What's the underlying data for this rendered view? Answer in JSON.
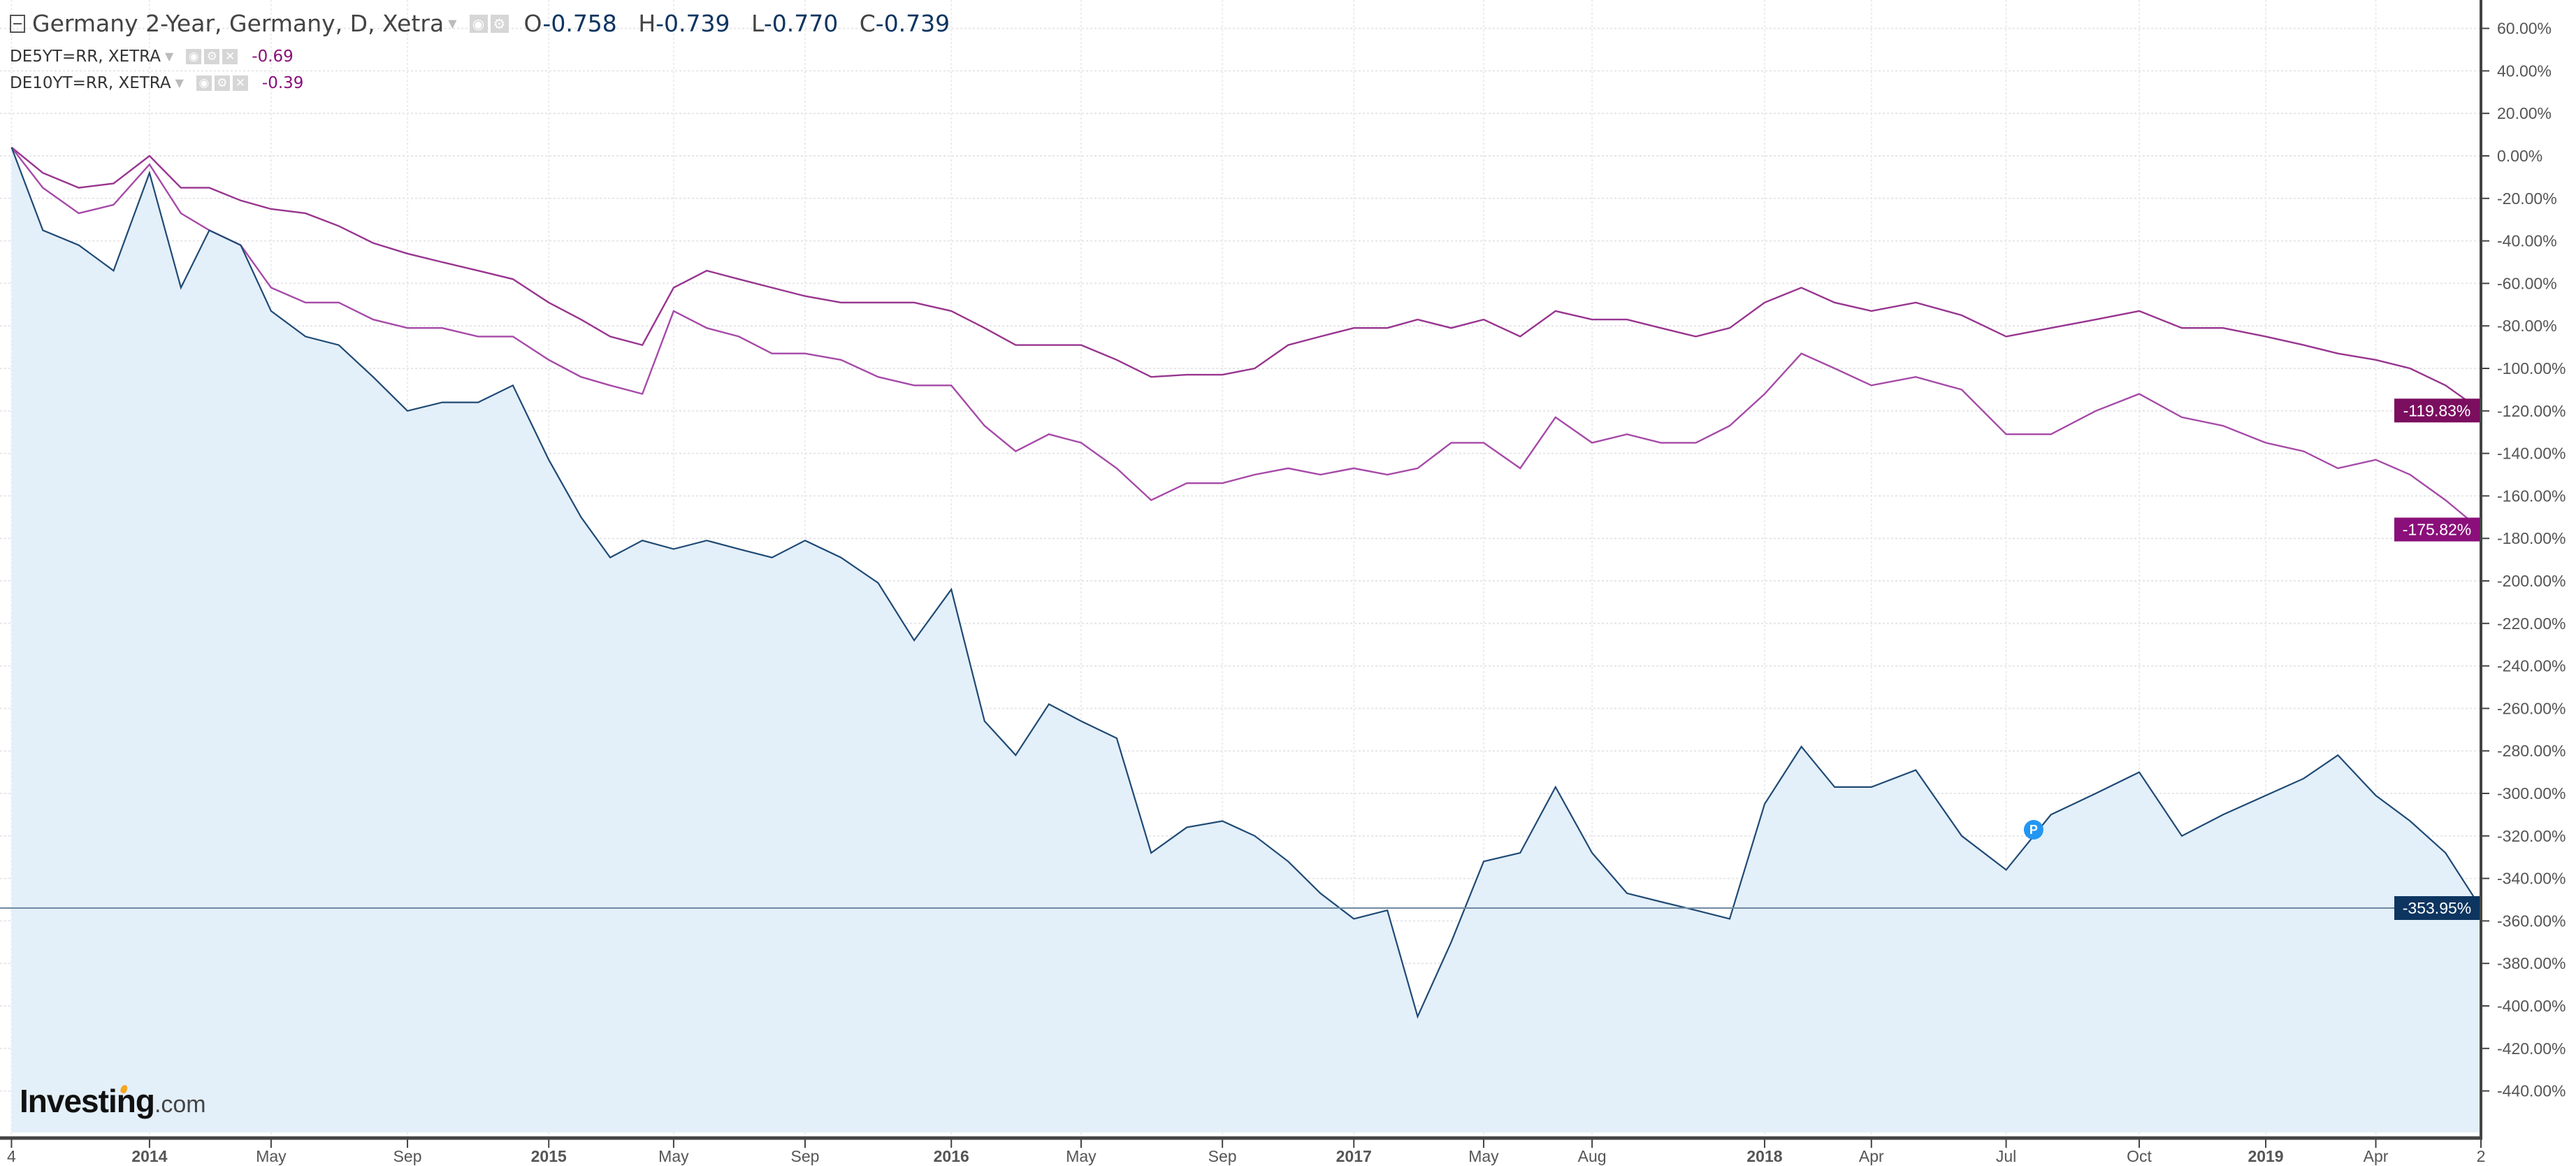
{
  "header": {
    "title": "Germany 2-Year, Germany, D, Xetra",
    "ohlc": [
      {
        "label": "O",
        "value": "-0.758"
      },
      {
        "label": "H",
        "value": "-0.739"
      },
      {
        "label": "L",
        "value": "-0.770"
      },
      {
        "label": "C",
        "value": "-0.739"
      }
    ]
  },
  "comparisons": [
    {
      "symbol": "DE5YT=RR, XETRA",
      "value": "-0.69"
    },
    {
      "symbol": "DE10YT=RR, XETRA",
      "value": "-0.39"
    }
  ],
  "logo": {
    "main": "Investing",
    "suffix": ".com"
  },
  "marker": {
    "label": "P",
    "date": "2018-07-20",
    "color": "#2196f3"
  },
  "colors": {
    "main_line": "#1f4a75",
    "main_fill": "#e3eff9",
    "de5y": "#a64aa8",
    "de10y": "#98358f",
    "badge_main": "#0d3560",
    "badge_de5y": "#8a0f7a",
    "badge_de10y": "#7b0e5f"
  },
  "chart_data": {
    "type": "line",
    "title": "",
    "xlabel": "",
    "ylabel": "",
    "ylim": [
      -450,
      65
    ],
    "grid": true,
    "y_ticks": [
      "60.00%",
      "40.00%",
      "20.00%",
      "0.00%",
      "-20.00%",
      "-40.00%",
      "-60.00%",
      "-80.00%",
      "-100.00%",
      "-120.00%",
      "-140.00%",
      "-160.00%",
      "-180.00%",
      "-200.00%",
      "-220.00%",
      "-240.00%",
      "-260.00%",
      "-280.00%",
      "-300.00%",
      "-320.00%",
      "-340.00%",
      "-360.00%",
      "-380.00%",
      "-400.00%",
      "-420.00%",
      "-440.00%"
    ],
    "y_tick_values": [
      60,
      40,
      20,
      0,
      -20,
      -40,
      -60,
      -80,
      -100,
      -120,
      -140,
      -160,
      -180,
      -200,
      -220,
      -240,
      -260,
      -280,
      -300,
      -320,
      -340,
      -360,
      -380,
      -400,
      -420,
      -440
    ],
    "x_ticks": [
      {
        "label": "4",
        "date": "2013-09-04",
        "bold": false
      },
      {
        "label": "2014",
        "date": "2014-01-01",
        "bold": true
      },
      {
        "label": "May",
        "date": "2014-05-01",
        "bold": false
      },
      {
        "label": "Sep",
        "date": "2014-09-01",
        "bold": false
      },
      {
        "label": "2015",
        "date": "2015-01-01",
        "bold": true
      },
      {
        "label": "May",
        "date": "2015-05-01",
        "bold": false
      },
      {
        "label": "Sep",
        "date": "2015-09-01",
        "bold": false
      },
      {
        "label": "2016",
        "date": "2016-01-01",
        "bold": true
      },
      {
        "label": "May",
        "date": "2016-05-01",
        "bold": false
      },
      {
        "label": "Sep",
        "date": "2016-09-01",
        "bold": false
      },
      {
        "label": "2017",
        "date": "2017-01-01",
        "bold": true
      },
      {
        "label": "May",
        "date": "2017-05-01",
        "bold": false
      },
      {
        "label": "Aug",
        "date": "2017-08-01",
        "bold": false
      },
      {
        "label": "2018",
        "date": "2018-01-01",
        "bold": true
      },
      {
        "label": "Apr",
        "date": "2018-04-01",
        "bold": false
      },
      {
        "label": "Jul",
        "date": "2018-07-01",
        "bold": false
      },
      {
        "label": "Oct",
        "date": "2018-10-01",
        "bold": false
      },
      {
        "label": "2019",
        "date": "2019-01-01",
        "bold": true
      },
      {
        "label": "Apr",
        "date": "2019-04-01",
        "bold": false
      },
      {
        "label": "2",
        "date": "2019-07-02",
        "bold": false
      }
    ],
    "x": [
      "2013-09-04",
      "2013-10-01",
      "2013-11-01",
      "2013-12-01",
      "2014-01-01",
      "2014-02-01",
      "2014-03-01",
      "2014-04-01",
      "2014-05-01",
      "2014-06-01",
      "2014-07-01",
      "2014-08-01",
      "2014-09-01",
      "2014-10-01",
      "2014-11-01",
      "2014-12-01",
      "2015-01-01",
      "2015-02-01",
      "2015-03-01",
      "2015-04-01",
      "2015-05-01",
      "2015-06-01",
      "2015-07-01",
      "2015-08-01",
      "2015-09-01",
      "2015-10-01",
      "2015-11-01",
      "2015-12-01",
      "2016-01-01",
      "2016-02-01",
      "2016-03-01",
      "2016-04-01",
      "2016-05-01",
      "2016-06-01",
      "2016-07-01",
      "2016-08-01",
      "2016-09-01",
      "2016-10-01",
      "2016-11-01",
      "2016-12-01",
      "2017-01-01",
      "2017-02-01",
      "2017-03-01",
      "2017-04-01",
      "2017-05-01",
      "2017-06-01",
      "2017-07-01",
      "2017-08-01",
      "2017-09-01",
      "2017-10-01",
      "2017-11-01",
      "2017-12-01",
      "2018-01-01",
      "2018-02-01",
      "2018-03-01",
      "2018-04-01",
      "2018-05-01",
      "2018-06-01",
      "2018-07-01",
      "2018-08-01",
      "2018-09-01",
      "2018-10-01",
      "2018-11-01",
      "2018-12-01",
      "2019-01-01",
      "2019-02-01",
      "2019-03-01",
      "2019-04-01",
      "2019-05-01",
      "2019-06-01",
      "2019-07-02"
    ],
    "series": [
      {
        "name": "Germany 2-Year",
        "last_label": "-353.95%",
        "values": [
          4,
          -35,
          -42,
          -54,
          -8,
          -62,
          -35,
          -42,
          -73,
          -85,
          -89,
          -104,
          -120,
          -116,
          -116,
          -108,
          -143,
          -170,
          -189,
          -181,
          -185,
          -181,
          -185,
          -189,
          -181,
          -189,
          -201,
          -228,
          -204,
          -266,
          -282,
          -258,
          -266,
          -274,
          -328,
          -316,
          -313,
          -320,
          -332,
          -347,
          -359,
          -355,
          -405,
          -370,
          -332,
          -328,
          -297,
          -328,
          -347,
          -351,
          -355,
          -359,
          -305,
          -278,
          -297,
          -297,
          -289,
          -320,
          -336,
          -310,
          -300,
          -290,
          -320,
          -310,
          -301,
          -293,
          -282,
          -301,
          -313,
          -328,
          -353.95
        ]
      },
      {
        "name": "DE5YT=RR, XETRA",
        "last_label": "-175.82%",
        "values": [
          4,
          -15,
          -27,
          -23,
          -4,
          -27,
          -35,
          -42,
          -62,
          -69,
          -69,
          -77,
          -81,
          -81,
          -85,
          -85,
          -96,
          -104,
          -108,
          -112,
          -73,
          -81,
          -85,
          -93,
          -93,
          -96,
          -104,
          -108,
          -108,
          -127,
          -139,
          -131,
          -135,
          -147,
          -162,
          -154,
          -154,
          -150,
          -147,
          -150,
          -147,
          -150,
          -147,
          -135,
          -135,
          -147,
          -123,
          -135,
          -131,
          -135,
          -135,
          -127,
          -112,
          -93,
          -100,
          -108,
          -104,
          -110,
          -131,
          -131,
          -120,
          -112,
          -123,
          -127,
          -135,
          -139,
          -147,
          -143,
          -150,
          -162,
          -175.82
        ]
      },
      {
        "name": "DE10YT=RR, XETRA",
        "last_label": "-119.83%",
        "values": [
          4,
          -8,
          -15,
          -13,
          0,
          -15,
          -15,
          -21,
          -25,
          -27,
          -33,
          -41,
          -46,
          -50,
          -54,
          -58,
          -69,
          -77,
          -85,
          -89,
          -62,
          -54,
          -58,
          -62,
          -66,
          -69,
          -69,
          -69,
          -73,
          -81,
          -89,
          -89,
          -89,
          -96,
          -104,
          -103,
          -103,
          -100,
          -89,
          -85,
          -81,
          -81,
          -77,
          -81,
          -77,
          -85,
          -73,
          -77,
          -77,
          -81,
          -85,
          -81,
          -69,
          -62,
          -69,
          -73,
          -69,
          -75,
          -85,
          -81,
          -77,
          -73,
          -81,
          -81,
          -85,
          -89,
          -93,
          -96,
          -100,
          -108,
          -119.83
        ]
      }
    ]
  }
}
